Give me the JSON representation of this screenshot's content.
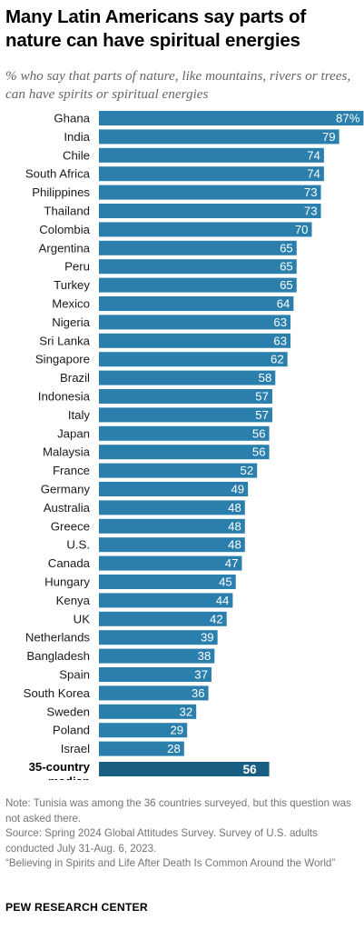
{
  "header": {
    "title": "Many Latin Americans say parts of nature can have spiritual energies",
    "subtitle": "% who say that parts of nature, like mountains, rivers or trees, can have spirits or spiritual energies"
  },
  "chart_data": {
    "type": "bar",
    "orientation": "horizontal",
    "categories": [
      "Ghana",
      "India",
      "Chile",
      "South Africa",
      "Philippines",
      "Thailand",
      "Colombia",
      "Argentina",
      "Peru",
      "Turkey",
      "Mexico",
      "Nigeria",
      "Sri Lanka",
      "Singapore",
      "Brazil",
      "Indonesia",
      "Italy",
      "Japan",
      "Malaysia",
      "France",
      "Germany",
      "Australia",
      "Greece",
      "U.S.",
      "Canada",
      "Hungary",
      "Kenya",
      "UK",
      "Netherlands",
      "Bangladesh",
      "Spain",
      "South Korea",
      "Sweden",
      "Poland",
      "Israel"
    ],
    "values": [
      87,
      79,
      74,
      74,
      73,
      73,
      70,
      65,
      65,
      65,
      64,
      63,
      63,
      62,
      58,
      57,
      57,
      56,
      56,
      52,
      49,
      48,
      48,
      48,
      47,
      45,
      44,
      42,
      39,
      38,
      37,
      36,
      32,
      29,
      28
    ],
    "value_labels": [
      "87%",
      "79",
      "74",
      "74",
      "73",
      "73",
      "70",
      "65",
      "65",
      "65",
      "64",
      "63",
      "63",
      "62",
      "58",
      "57",
      "57",
      "56",
      "56",
      "52",
      "49",
      "48",
      "48",
      "48",
      "47",
      "45",
      "44",
      "42",
      "39",
      "38",
      "37",
      "36",
      "32",
      "29",
      "28"
    ],
    "median": {
      "label_line1": "35-country",
      "label_line2": "median",
      "value": 56,
      "value_label": "56"
    },
    "xlim": [
      0,
      100
    ],
    "bar_color": "#2a7fad",
    "median_color": "#1b5e84",
    "grid": false,
    "legend": "none"
  },
  "footer": {
    "note": "Note: Tunisia was among the 36 countries surveyed, but this question was not asked there.",
    "source": "Source: Spring 2024 Global Attitudes Survey. Survey of U.S. adults conducted July 31-Aug. 6, 2023.",
    "report": "“Believing in Spirits and Life After Death Is Common Around the World”",
    "brand": "PEW RESEARCH CENTER"
  }
}
